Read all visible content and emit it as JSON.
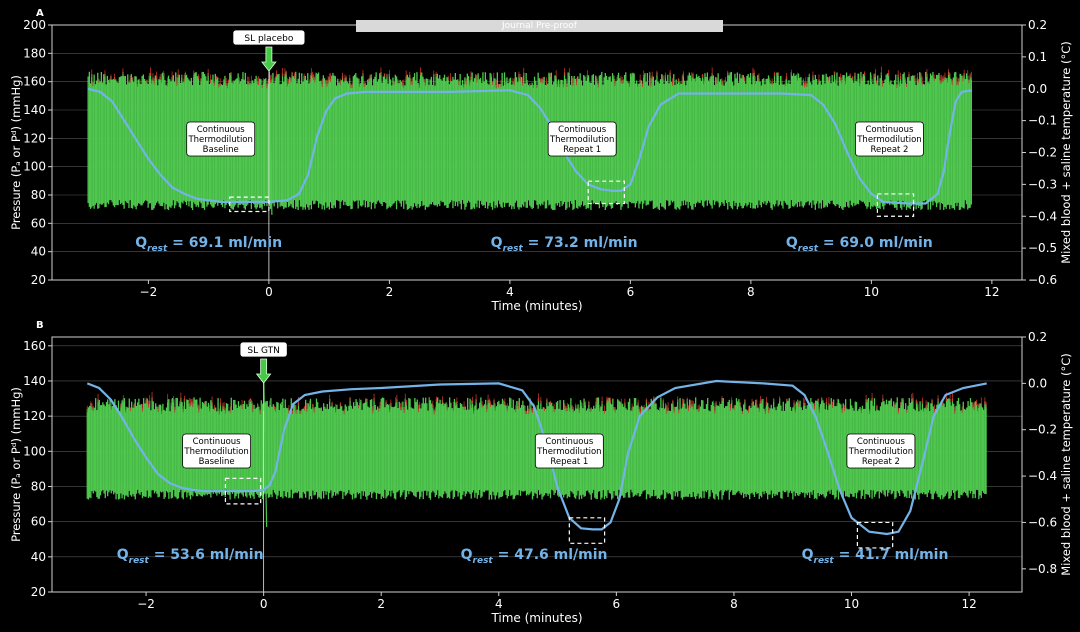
{
  "watermark": "Journal Pre-proof",
  "colors": {
    "pressure": "#4ec94e",
    "pressure_red": "#c8322a",
    "temperature": "#74b3e8",
    "axes": "#cfcfcf",
    "grid": "#555555",
    "text": "#ffffff"
  },
  "chart_data": [
    {
      "type": "line",
      "panel_label": "A",
      "xlabel": "Time (minutes)",
      "ylabel_left": "Pressure (Pₐ or Pᵈ) (mmHg)",
      "ylabel_right": "Mixed blood + saline temperature (°C)",
      "xlim": [
        -3.6,
        12.5
      ],
      "ylim_left": [
        20,
        200
      ],
      "ylim_right": [
        -0.6,
        0.2
      ],
      "xticks": [
        "−2",
        "0",
        "2",
        "4",
        "6",
        "8",
        "10",
        "12"
      ],
      "xtick_values": [
        -2,
        0,
        2,
        4,
        6,
        8,
        10,
        12
      ],
      "yticks_left": [
        "20",
        "40",
        "60",
        "80",
        "100",
        "120",
        "140",
        "160",
        "180",
        "200"
      ],
      "ytick_values_left": [
        20,
        40,
        60,
        80,
        100,
        120,
        140,
        160,
        180,
        200
      ],
      "yticks_right": [
        "−0.6",
        "−0.5",
        "−0.4",
        "−0.3",
        "−0.2",
        "−0.1",
        "0.0",
        "0.1",
        "0.2"
      ],
      "ytick_values_right": [
        -0.6,
        -0.5,
        -0.4,
        -0.3,
        -0.2,
        -0.1,
        0.0,
        0.1,
        0.2
      ],
      "grid": true,
      "pressure_band": {
        "x_range": [
          -3,
          11.67
        ],
        "upper_mmHg": 160,
        "lower_mmHg": 75,
        "peak_mmHg": 175,
        "trough_mmHg": 66
      },
      "temperature_series": {
        "x": [
          -3.0,
          -2.8,
          -2.6,
          -2.4,
          -2.2,
          -2.0,
          -1.8,
          -1.6,
          -1.4,
          -1.2,
          -1.0,
          -0.8,
          -0.6,
          -0.3,
          0.0,
          0.3,
          0.5,
          0.65,
          0.8,
          0.95,
          1.1,
          1.3,
          1.6,
          2.0,
          3.0,
          4.0,
          4.3,
          4.5,
          4.7,
          4.9,
          5.1,
          5.3,
          5.5,
          5.7,
          5.85,
          6.0,
          6.15,
          6.3,
          6.5,
          6.8,
          7.5,
          8.5,
          9.0,
          9.2,
          9.4,
          9.6,
          9.8,
          10.0,
          10.2,
          10.6,
          10.9,
          11.1,
          11.2,
          11.3,
          11.4,
          11.5,
          11.67
        ],
        "y": [
          0.0,
          -0.01,
          -0.04,
          -0.1,
          -0.16,
          -0.22,
          -0.27,
          -0.31,
          -0.33,
          -0.345,
          -0.35,
          -0.355,
          -0.355,
          -0.355,
          -0.355,
          -0.35,
          -0.33,
          -0.27,
          -0.15,
          -0.07,
          -0.03,
          -0.015,
          -0.01,
          -0.01,
          -0.01,
          -0.005,
          -0.02,
          -0.06,
          -0.12,
          -0.2,
          -0.26,
          -0.3,
          -0.315,
          -0.32,
          -0.32,
          -0.3,
          -0.22,
          -0.12,
          -0.05,
          -0.015,
          -0.015,
          -0.015,
          -0.02,
          -0.05,
          -0.11,
          -0.2,
          -0.28,
          -0.33,
          -0.355,
          -0.36,
          -0.36,
          -0.33,
          -0.26,
          -0.14,
          -0.04,
          -0.01,
          -0.005
        ]
      },
      "annotations": [
        {
          "text": "SL placebo",
          "x": 0.0,
          "arrow": true
        },
        {
          "text": "Continuous\nThermodilution\nBaseline",
          "x": -0.8
        },
        {
          "text": "Continuous\nThermodilution\nRepeat 1",
          "x": 5.2
        },
        {
          "text": "Continuous\nThermodilution\nRepeat 2",
          "x": 10.3
        }
      ],
      "measurement_windows": [
        {
          "x_range": [
            -0.65,
            0.0
          ],
          "t_range": [
            -0.34,
            -0.385
          ]
        },
        {
          "x_range": [
            5.3,
            5.9
          ],
          "t_range": [
            -0.29,
            -0.36
          ]
        },
        {
          "x_range": [
            10.1,
            10.7
          ],
          "t_range": [
            -0.33,
            -0.4
          ]
        }
      ],
      "flow_labels": [
        {
          "q": "Q",
          "sub": "rest",
          "value": " = 69.1 ml/min",
          "x": -1.0
        },
        {
          "q": "Q",
          "sub": "rest",
          "value": " = 73.2 ml/min",
          "x": 4.9
        },
        {
          "q": "Q",
          "sub": "rest",
          "value": " = 69.0 ml/min",
          "x": 9.8
        }
      ]
    },
    {
      "type": "line",
      "panel_label": "B",
      "xlabel": "Time (minutes)",
      "ylabel_left": "Pressure (Pₐ or Pᵈ) (mmHg)",
      "ylabel_right": "Mixed blood + saline temperature (°C)",
      "xlim": [
        -3.6,
        12.9
      ],
      "ylim_left": [
        20,
        165
      ],
      "ylim_right": [
        -0.9,
        0.2
      ],
      "xticks": [
        "−2",
        "0",
        "2",
        "4",
        "6",
        "8",
        "10",
        "12"
      ],
      "xtick_values": [
        -2,
        0,
        2,
        4,
        6,
        8,
        10,
        12
      ],
      "yticks_left": [
        "20",
        "40",
        "60",
        "80",
        "100",
        "120",
        "140",
        "160"
      ],
      "ytick_values_left": [
        20,
        40,
        60,
        80,
        100,
        120,
        140,
        160
      ],
      "yticks_right": [
        "−0.8",
        "−0.6",
        "−0.4",
        "−0.2",
        "0.0",
        "0.2"
      ],
      "ytick_values_right": [
        -0.8,
        -0.6,
        -0.4,
        -0.2,
        0.0,
        0.2
      ],
      "grid": true,
      "pressure_band": {
        "x_range": [
          -3,
          12.3
        ],
        "upper_mmHg": 125,
        "lower_mmHg": 77,
        "peak_mmHg": 145,
        "trough_mmHg": 57
      },
      "temperature_series": {
        "x": [
          -3.0,
          -2.8,
          -2.6,
          -2.4,
          -2.2,
          -2.0,
          -1.8,
          -1.6,
          -1.4,
          -1.2,
          -1.0,
          -0.6,
          -0.2,
          0.0,
          0.1,
          0.2,
          0.35,
          0.5,
          0.7,
          1.0,
          1.5,
          2.0,
          3.0,
          4.0,
          4.4,
          4.6,
          4.8,
          5.0,
          5.2,
          5.4,
          5.6,
          5.75,
          5.9,
          6.05,
          6.2,
          6.4,
          6.7,
          7.0,
          7.7,
          8.5,
          9.0,
          9.2,
          9.4,
          9.6,
          9.8,
          10.0,
          10.3,
          10.6,
          10.8,
          11.0,
          11.2,
          11.4,
          11.6,
          11.9,
          12.3
        ],
        "y": [
          0.0,
          -0.02,
          -0.07,
          -0.15,
          -0.24,
          -0.32,
          -0.39,
          -0.43,
          -0.45,
          -0.46,
          -0.465,
          -0.465,
          -0.465,
          -0.46,
          -0.44,
          -0.38,
          -0.2,
          -0.09,
          -0.05,
          -0.035,
          -0.025,
          -0.02,
          -0.005,
          0.0,
          -0.03,
          -0.1,
          -0.25,
          -0.45,
          -0.58,
          -0.625,
          -0.63,
          -0.63,
          -0.6,
          -0.5,
          -0.3,
          -0.14,
          -0.06,
          -0.02,
          0.01,
          0.0,
          -0.01,
          -0.05,
          -0.15,
          -0.3,
          -0.46,
          -0.58,
          -0.64,
          -0.65,
          -0.64,
          -0.55,
          -0.35,
          -0.14,
          -0.05,
          -0.02,
          0.0
        ]
      },
      "annotations": [
        {
          "text": "SL GTN",
          "x": 0.0,
          "arrow": true
        },
        {
          "text": "Continuous\nThermodilution\nBaseline",
          "x": -0.8
        },
        {
          "text": "Continuous\nThermodilution\nRepeat 1",
          "x": 5.2
        },
        {
          "text": "Continuous\nThermodilution\nRepeat 2",
          "x": 10.5
        }
      ],
      "measurement_windows": [
        {
          "x_range": [
            -0.65,
            -0.05
          ],
          "t_range": [
            -0.41,
            -0.52
          ]
        },
        {
          "x_range": [
            5.2,
            5.8
          ],
          "t_range": [
            -0.58,
            -0.69
          ]
        },
        {
          "x_range": [
            10.1,
            10.7
          ],
          "t_range": [
            -0.6,
            -0.71
          ]
        }
      ],
      "flow_labels": [
        {
          "q": "Q",
          "sub": "rest",
          "value": " = 53.6 ml/min",
          "x": -1.25
        },
        {
          "q": "Q",
          "sub": "rest",
          "value": " = 47.6 ml/min",
          "x": 4.6
        },
        {
          "q": "Q",
          "sub": "rest",
          "value": " = 41.7 ml/min",
          "x": 10.4
        }
      ]
    }
  ]
}
